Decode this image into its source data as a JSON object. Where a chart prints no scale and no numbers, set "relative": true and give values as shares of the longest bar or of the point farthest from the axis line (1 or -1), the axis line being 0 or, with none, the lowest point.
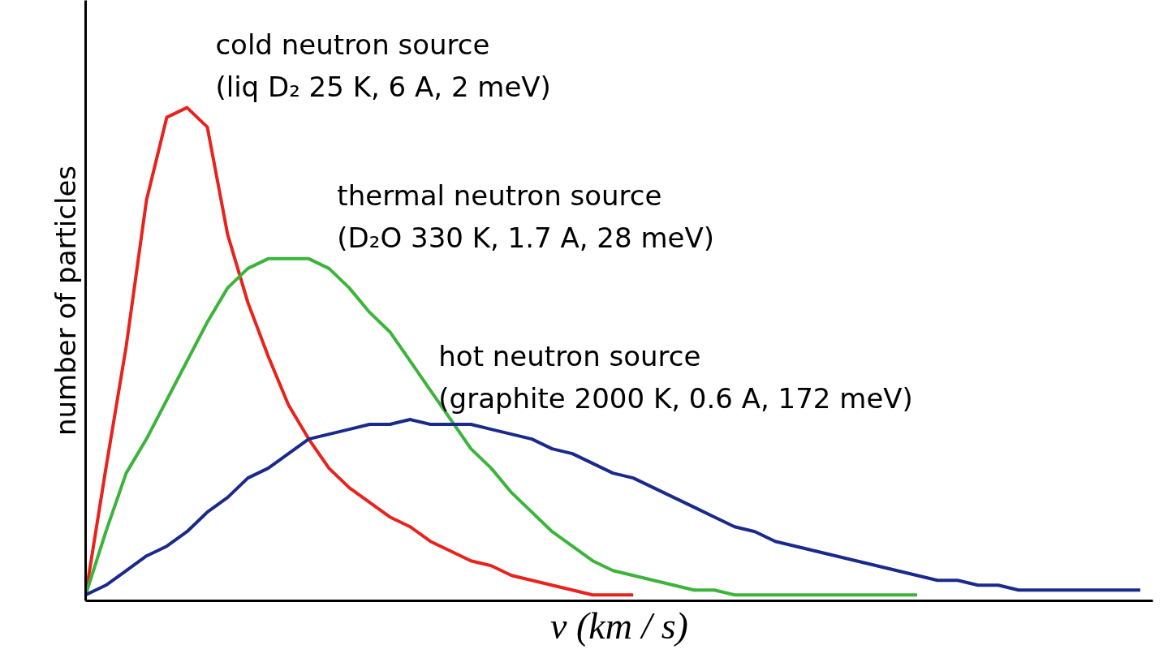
{
  "chart_data": {
    "type": "line",
    "relative": true,
    "xlabel": "v (km / s)",
    "ylabel": "number of particles",
    "categories": [
      null,
      null,
      null,
      null,
      null,
      null,
      null,
      null,
      null,
      null,
      null,
      null,
      null,
      null,
      null,
      null,
      null,
      null,
      null,
      null,
      null,
      null,
      null,
      null,
      null,
      null,
      null,
      null,
      null,
      null,
      null,
      null,
      null,
      null,
      null,
      null,
      null,
      null,
      null,
      null,
      null,
      null,
      null,
      null,
      null,
      null,
      null,
      null,
      null,
      null,
      null,
      null,
      null
    ],
    "series": [
      {
        "name": "cold neutron source\n(liq D₂ 25 K, 6 A, 2 meV)",
        "color": "#e8221c",
        "values": [
          0,
          0.26,
          0.51,
          0.81,
          0.98,
          1,
          0.96,
          0.74,
          0.6,
          0.49,
          0.39,
          0.32,
          0.26,
          0.22,
          0.19,
          0.16,
          0.14,
          0.11,
          0.09,
          0.07,
          0.06,
          0.04,
          0.03,
          0.02,
          0.01,
          0,
          0,
          0,
          null,
          null,
          null,
          null,
          null,
          null,
          null,
          null,
          null,
          null,
          null,
          null,
          null,
          null,
          null,
          null,
          null,
          null,
          null,
          null,
          null,
          null,
          null,
          null,
          null
        ]
      },
      {
        "name": "thermal neutron source\n(D₂O 330 K, 1.7 A, 28 meV)",
        "color": "#3cb43c",
        "values": [
          0,
          0.13,
          0.25,
          0.32,
          0.4,
          0.48,
          0.56,
          0.63,
          0.67,
          0.69,
          0.69,
          0.69,
          0.67,
          0.63,
          0.58,
          0.54,
          0.48,
          0.42,
          0.36,
          0.3,
          0.26,
          0.21,
          0.17,
          0.13,
          0.1,
          0.07,
          0.05,
          0.04,
          0.03,
          0.02,
          0.01,
          0.01,
          0,
          0,
          0,
          0,
          0,
          0,
          0,
          0,
          0,
          0,
          null,
          null,
          null,
          null,
          null,
          null,
          null,
          null,
          null,
          null,
          null
        ]
      },
      {
        "name": "hot neutron source\n(graphite 2000 K, 0.6 A, 172 meV)",
        "color": "#1a2a8a",
        "values": [
          0,
          0.02,
          0.05,
          0.08,
          0.1,
          0.13,
          0.17,
          0.2,
          0.24,
          0.26,
          0.29,
          0.32,
          0.33,
          0.34,
          0.35,
          0.35,
          0.36,
          0.35,
          0.35,
          0.35,
          0.34,
          0.33,
          0.32,
          0.3,
          0.29,
          0.27,
          0.25,
          0.24,
          0.22,
          0.2,
          0.18,
          0.16,
          0.14,
          0.13,
          0.11,
          0.1,
          0.09,
          0.08,
          0.07,
          0.06,
          0.05,
          0.04,
          0.03,
          0.03,
          0.02,
          0.02,
          0.01,
          0.01,
          0.01,
          0.01,
          0.01,
          0.01,
          0.01
        ]
      }
    ]
  }
}
